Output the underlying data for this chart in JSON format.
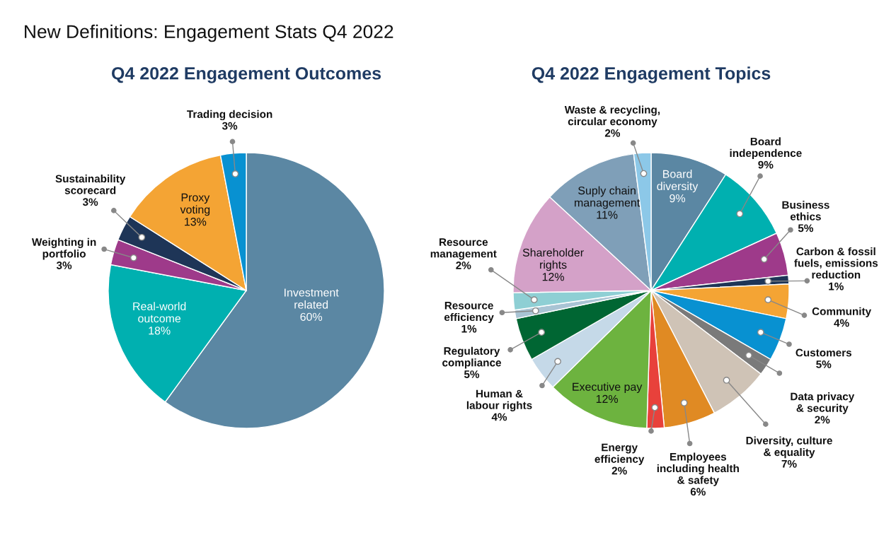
{
  "chart_data": [
    {
      "type": "pie",
      "title": "Q4 2022 Engagement Outcomes",
      "annotations": [
        "New Definitions: Engagement Stats Q4 2022"
      ],
      "legend": false,
      "categories": [
        "Investment\nrelated",
        "Real-world\noutcome",
        "Weighting in\nportfolio",
        "Sustainability\nscorecard",
        "Proxy\nvoting",
        "Trading decision"
      ],
      "values": [
        60,
        18,
        3,
        3,
        13,
        3
      ],
      "value_labels": [
        "60%",
        "18%",
        "3%",
        "3%",
        "13%",
        "3%"
      ],
      "colors": [
        "#5b87a3",
        "#00b0b0",
        "#9e3a8a",
        "#1e3557",
        "#f4a434",
        "#0891d1"
      ]
    },
    {
      "type": "pie",
      "title": "Q4 2022 Engagement Topics",
      "legend": false,
      "categories": [
        "Board\ndiversity",
        "Board\nindependence",
        "Business\nethics",
        "Carbon & fossil\nfuels, emissions\nreduction",
        "Community",
        "Customers",
        "Data privacy\n& security",
        "Diversity, culture\n& equality",
        "Employees\nincluding health\n& safety",
        "Energy\nefficiency",
        "Executive pay",
        "Human &\nlabour rights",
        "Regulatory\ncompliance",
        "Resource\nefficiency",
        "Resource\nmanagement",
        "Shareholder\nrights",
        "Suply chain\nmanagement",
        "Waste & recycling,\ncircular economy"
      ],
      "values": [
        9,
        9,
        5,
        1,
        4,
        5,
        2,
        7,
        6,
        2,
        12,
        4,
        5,
        1,
        2,
        12,
        11,
        2
      ],
      "value_labels": [
        "9%",
        "9%",
        "5%",
        "1%",
        "4%",
        "5%",
        "2%",
        "7%",
        "6%",
        "2%",
        "12%",
        "4%",
        "5%",
        "1%",
        "2%",
        "12%",
        "11%",
        "2%"
      ],
      "colors": [
        "#5b87a3",
        "#00b0b0",
        "#9e3a8a",
        "#1e3557",
        "#f4a434",
        "#0891d1",
        "#7a7a7a",
        "#cfc3b6",
        "#e08a23",
        "#e8413b",
        "#6db33f",
        "#c5d9e8",
        "#006633",
        "#a9c4d4",
        "#8ecfd4",
        "#d4a1c8",
        "#7f9fb8",
        "#8cc8e8"
      ]
    }
  ]
}
